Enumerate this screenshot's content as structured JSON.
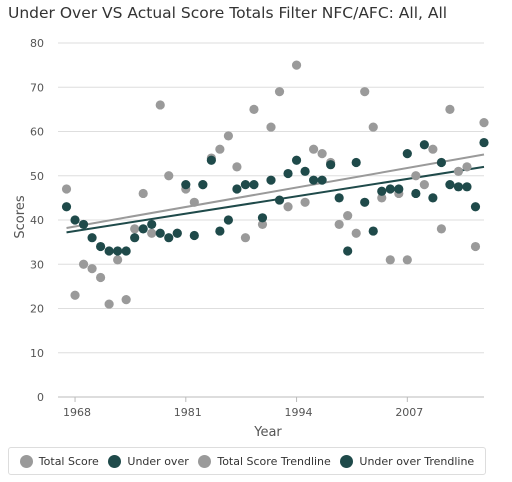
{
  "chart_data": {
    "type": "scatter",
    "title": "Under Over VS Actual Score Totals Filter NFC/AFC: All, All",
    "xlabel": "Year",
    "ylabel": "Scores",
    "xlim": [
      1966,
      2016
    ],
    "ylim": [
      0,
      80
    ],
    "x_ticks": [
      {
        "value": 1968,
        "label": "1968"
      },
      {
        "value": 1981,
        "label": "1981"
      },
      {
        "value": 1994,
        "label": "1994"
      },
      {
        "value": 2007,
        "label": "2007"
      }
    ],
    "y_ticks": [
      0,
      10,
      20,
      30,
      40,
      50,
      60,
      70,
      80
    ],
    "grid": "horizontal",
    "legend_position": "bottom",
    "series": [
      {
        "name": "Total Score",
        "kind": "scatter",
        "color": "#9a9a9a",
        "points": [
          [
            1967,
            47
          ],
          [
            1968,
            23
          ],
          [
            1969,
            30
          ],
          [
            1970,
            29
          ],
          [
            1971,
            27
          ],
          [
            1972,
            21
          ],
          [
            1973,
            31
          ],
          [
            1974,
            22
          ],
          [
            1975,
            38
          ],
          [
            1976,
            46
          ],
          [
            1977,
            37
          ],
          [
            1978,
            66
          ],
          [
            1979,
            50
          ],
          [
            1980,
            37
          ],
          [
            1981,
            47
          ],
          [
            1982,
            44
          ],
          [
            1983,
            48
          ],
          [
            1984,
            54
          ],
          [
            1985,
            56
          ],
          [
            1986,
            59
          ],
          [
            1987,
            52
          ],
          [
            1988,
            36
          ],
          [
            1989,
            65
          ],
          [
            1990,
            39
          ],
          [
            1991,
            61
          ],
          [
            1992,
            69
          ],
          [
            1993,
            43
          ],
          [
            1994,
            75
          ],
          [
            1995,
            44
          ],
          [
            1996,
            56
          ],
          [
            1997,
            55
          ],
          [
            1998,
            53
          ],
          [
            1999,
            39
          ],
          [
            2000,
            41
          ],
          [
            2001,
            37
          ],
          [
            2002,
            69
          ],
          [
            2003,
            61
          ],
          [
            2004,
            45
          ],
          [
            2005,
            31
          ],
          [
            2006,
            46
          ],
          [
            2007,
            31
          ],
          [
            2008,
            50
          ],
          [
            2009,
            48
          ],
          [
            2010,
            56
          ],
          [
            2011,
            38
          ],
          [
            2012,
            65
          ],
          [
            2013,
            51
          ],
          [
            2014,
            52
          ],
          [
            2015,
            34
          ],
          [
            2016,
            62
          ]
        ]
      },
      {
        "name": "Under over",
        "kind": "scatter",
        "color": "#1f4a4a",
        "points": [
          [
            1967,
            43
          ],
          [
            1968,
            40
          ],
          [
            1969,
            39
          ],
          [
            1970,
            36
          ],
          [
            1971,
            34
          ],
          [
            1972,
            33
          ],
          [
            1973,
            33
          ],
          [
            1974,
            33
          ],
          [
            1975,
            36
          ],
          [
            1976,
            38
          ],
          [
            1977,
            39
          ],
          [
            1978,
            37
          ],
          [
            1979,
            36
          ],
          [
            1980,
            37
          ],
          [
            1981,
            48
          ],
          [
            1982,
            36.5
          ],
          [
            1983,
            48
          ],
          [
            1984,
            53.5
          ],
          [
            1985,
            37.5
          ],
          [
            1986,
            40
          ],
          [
            1987,
            47
          ],
          [
            1988,
            48
          ],
          [
            1989,
            48
          ],
          [
            1990,
            40.5
          ],
          [
            1991,
            49
          ],
          [
            1992,
            44.5
          ],
          [
            1993,
            50.5
          ],
          [
            1994,
            53.5
          ],
          [
            1995,
            51
          ],
          [
            1996,
            49
          ],
          [
            1997,
            49
          ],
          [
            1998,
            52.5
          ],
          [
            1999,
            45
          ],
          [
            2000,
            33
          ],
          [
            2001,
            53
          ],
          [
            2002,
            44
          ],
          [
            2003,
            37.5
          ],
          [
            2004,
            46.5
          ],
          [
            2005,
            47
          ],
          [
            2006,
            47
          ],
          [
            2007,
            55
          ],
          [
            2008,
            46
          ],
          [
            2009,
            57
          ],
          [
            2010,
            45
          ],
          [
            2011,
            53
          ],
          [
            2012,
            48
          ],
          [
            2013,
            47.5
          ],
          [
            2014,
            47.5
          ],
          [
            2015,
            43
          ],
          [
            2016,
            57.5
          ]
        ]
      },
      {
        "name": "Total Score Trendline",
        "kind": "line",
        "color": "#9a9a9a",
        "points": [
          [
            1967,
            38.2
          ],
          [
            2016,
            54.8
          ]
        ]
      },
      {
        "name": "Under over Trendline",
        "kind": "line",
        "color": "#1f4a4a",
        "points": [
          [
            1967,
            37.2
          ],
          [
            2016,
            52
          ]
        ]
      }
    ]
  }
}
